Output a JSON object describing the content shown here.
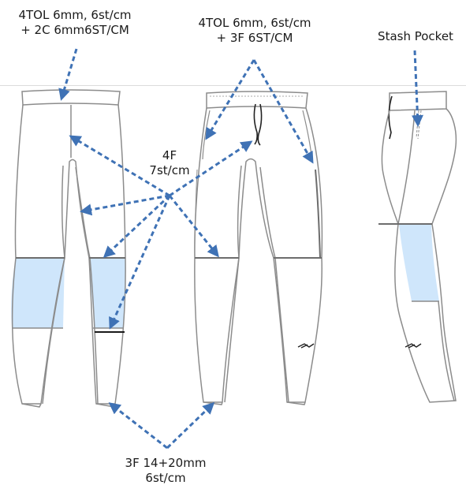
{
  "callouts": {
    "back_waistband": {
      "line1": "4TOL 6mm, 6st/cm",
      "line2": "+ 2C 6mm6ST/CM"
    },
    "front_waistband": {
      "line1": "4TOL 6mm, 6st/cm",
      "line2": "+ 3F 6ST/CM"
    },
    "stash_pocket": {
      "line1": "Stash Pocket"
    },
    "main_seams": {
      "line1": "4F",
      "line2": "7st/cm"
    },
    "hem": {
      "line1": "3F 14+20mm",
      "line2": "6st/cm"
    }
  },
  "colors": {
    "outline": "#8c8c8c",
    "arrow": "#3f72b5",
    "panel_fill": "#cfe6fb",
    "text": "#1a1a1a"
  }
}
